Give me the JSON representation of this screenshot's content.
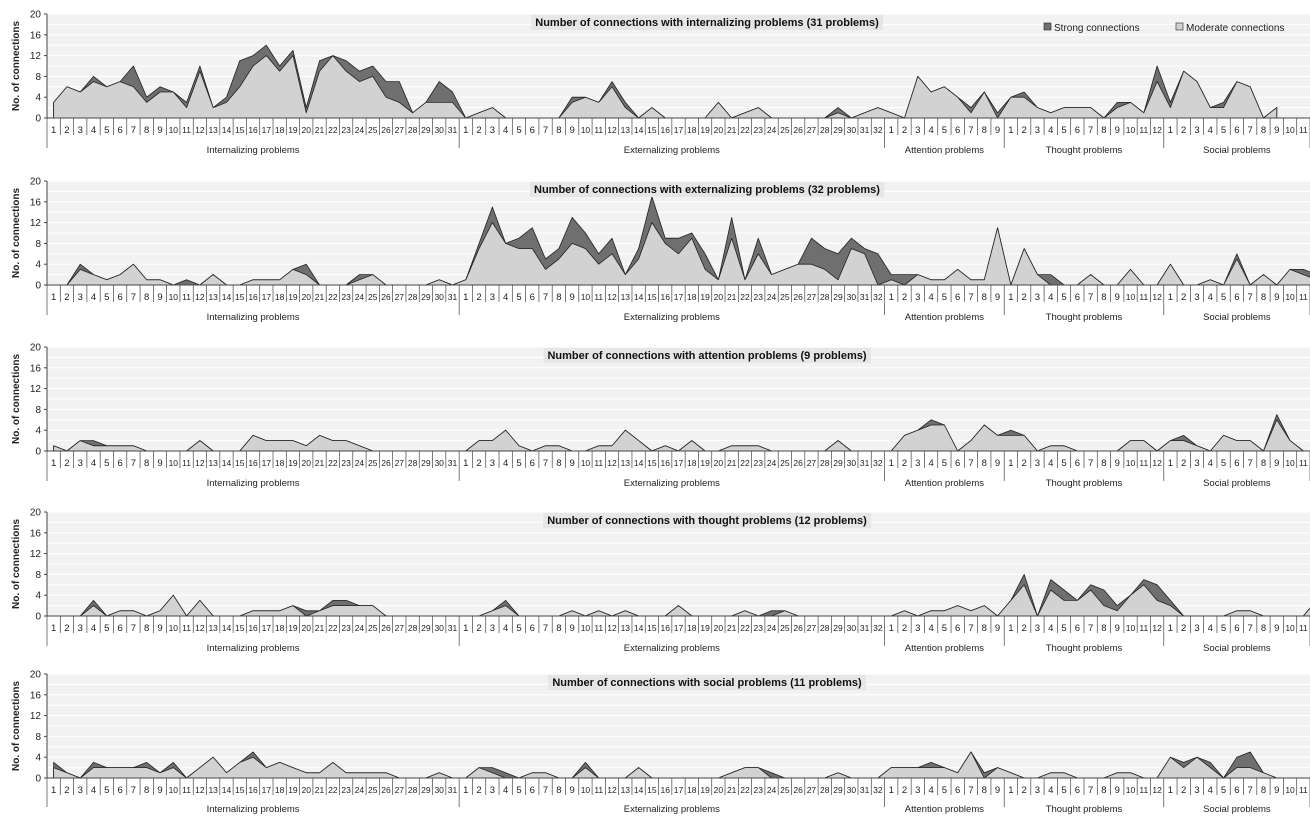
{
  "colors": {
    "strong": "#6f6f6f",
    "moderate": "#d2d2d2",
    "outline": "#222222",
    "band_light": "#f2f2f2",
    "title_bg": "#e6e6e6",
    "axis": "#444444"
  },
  "legend": {
    "strong_label": "Strong connections",
    "moderate_label": "Moderate connections"
  },
  "y_axis_label": "No. of connections",
  "groups": [
    {
      "name": "Internalizing problems",
      "count": 31
    },
    {
      "name": "Externalizing problems",
      "count": 32
    },
    {
      "name": "Attention problems",
      "count": 9
    },
    {
      "name": "Thought problems",
      "count": 12
    },
    {
      "name": "Social problems",
      "count": 11
    }
  ],
  "chart_data": [
    {
      "type": "area",
      "title": "Number of connections with internalizing problems (31 problems)",
      "ylabel": "No. of connections",
      "ylim": [
        0,
        20
      ],
      "yticks": [
        0,
        4,
        8,
        12,
        16,
        20
      ],
      "series": [
        {
          "name": "Strong connections",
          "values": [
            3,
            6,
            5,
            8,
            6,
            7,
            10,
            4,
            6,
            5,
            3,
            10,
            2,
            4,
            11,
            12,
            14,
            10,
            13,
            2,
            11,
            12,
            11,
            9,
            10,
            7,
            7,
            1,
            3,
            7,
            5,
            0,
            1,
            2,
            0,
            0,
            0,
            0,
            0,
            4,
            4,
            3,
            7,
            3,
            0,
            2,
            0,
            0,
            0,
            0,
            3,
            0,
            1,
            2,
            0,
            0,
            0,
            0,
            0,
            2,
            0,
            1,
            2,
            1,
            0,
            8,
            5,
            6,
            4,
            2,
            5,
            1,
            4,
            5,
            2,
            1,
            2,
            2,
            2,
            0,
            3,
            3,
            1,
            10,
            3,
            9,
            7,
            2,
            3,
            7,
            6,
            0,
            2
          ]
        },
        {
          "name": "Moderate connections",
          "values": [
            3,
            6,
            5,
            7,
            6,
            7,
            6,
            3,
            5,
            5,
            2,
            9,
            2,
            3,
            6,
            10,
            12,
            9,
            12,
            1,
            9,
            12,
            9,
            7,
            8,
            4,
            3,
            1,
            3,
            3,
            3,
            0,
            1,
            2,
            0,
            0,
            0,
            0,
            0,
            3,
            4,
            3,
            6,
            2,
            0,
            2,
            0,
            0,
            0,
            0,
            3,
            0,
            1,
            2,
            0,
            0,
            0,
            0,
            0,
            1,
            0,
            1,
            2,
            1,
            0,
            8,
            5,
            6,
            4,
            1,
            5,
            0,
            4,
            4,
            2,
            1,
            2,
            2,
            2,
            0,
            2,
            3,
            1,
            7,
            2,
            9,
            7,
            2,
            2,
            7,
            6,
            0,
            2
          ]
        }
      ]
    },
    {
      "type": "area",
      "title": "Number of connections with externalizing problems (32 problems)",
      "ylabel": "No. of connections",
      "ylim": [
        0,
        20
      ],
      "yticks": [
        0,
        4,
        8,
        12,
        16,
        20
      ],
      "series": [
        {
          "name": "Strong connections",
          "values": [
            0,
            0,
            4,
            2,
            1,
            2,
            4,
            1,
            1,
            0,
            1,
            0,
            2,
            0,
            0,
            1,
            1,
            1,
            3,
            4,
            0,
            0,
            0,
            2,
            2,
            0,
            0,
            0,
            0,
            1,
            0,
            1,
            8,
            15,
            8,
            9,
            11,
            5,
            7,
            13,
            10,
            6,
            9,
            2,
            7,
            17,
            9,
            9,
            10,
            6,
            1,
            13,
            1,
            9,
            2,
            3,
            4,
            9,
            7,
            6,
            9,
            7,
            6,
            2,
            2,
            2,
            1,
            1,
            3,
            1,
            1,
            11,
            0,
            7,
            2,
            2,
            0,
            0,
            2,
            0,
            0,
            3,
            0,
            0,
            4,
            0,
            0,
            1,
            0,
            6,
            0,
            2,
            0,
            3,
            3,
            2,
            1
          ]
        },
        {
          "name": "Moderate connections",
          "values": [
            0,
            0,
            3,
            2,
            1,
            2,
            4,
            1,
            1,
            0,
            0,
            0,
            2,
            0,
            0,
            1,
            1,
            1,
            3,
            2,
            0,
            0,
            0,
            1,
            2,
            0,
            0,
            0,
            0,
            1,
            0,
            1,
            7,
            12,
            8,
            7,
            7,
            3,
            5,
            8,
            7,
            4,
            6,
            2,
            5,
            12,
            8,
            6,
            9,
            3,
            1,
            9,
            1,
            6,
            2,
            3,
            4,
            4,
            3,
            1,
            7,
            6,
            0,
            1,
            0,
            2,
            1,
            1,
            3,
            1,
            1,
            11,
            0,
            7,
            2,
            0,
            0,
            0,
            2,
            0,
            0,
            3,
            0,
            0,
            4,
            0,
            0,
            1,
            0,
            5,
            0,
            2,
            0,
            3,
            2,
            1,
            1
          ]
        }
      ]
    },
    {
      "type": "area",
      "title": "Number of connections with attention problems (9 problems)",
      "ylabel": "No. of connections",
      "ylim": [
        0,
        20
      ],
      "yticks": [
        0,
        4,
        8,
        12,
        16,
        20
      ],
      "series": [
        {
          "name": "Strong connections",
          "values": [
            1,
            0,
            2,
            2,
            1,
            1,
            1,
            0,
            0,
            0,
            0,
            2,
            0,
            0,
            0,
            3,
            2,
            2,
            2,
            1,
            3,
            2,
            2,
            1,
            0,
            0,
            0,
            0,
            0,
            0,
            0,
            0,
            2,
            2,
            4,
            1,
            0,
            1,
            1,
            0,
            0,
            1,
            1,
            4,
            2,
            0,
            1,
            0,
            2,
            0,
            0,
            1,
            1,
            1,
            0,
            0,
            0,
            0,
            0,
            2,
            0,
            0,
            0,
            0,
            3,
            4,
            6,
            5,
            0,
            2,
            5,
            3,
            4,
            3,
            0,
            1,
            1,
            0,
            0,
            0,
            0,
            2,
            2,
            0,
            2,
            3,
            1,
            0,
            3,
            2,
            2,
            0,
            7,
            2,
            0
          ]
        },
        {
          "name": "Moderate connections",
          "values": [
            1,
            0,
            2,
            1,
            1,
            1,
            1,
            0,
            0,
            0,
            0,
            2,
            0,
            0,
            0,
            3,
            2,
            2,
            2,
            1,
            3,
            2,
            2,
            1,
            0,
            0,
            0,
            0,
            0,
            0,
            0,
            0,
            2,
            2,
            4,
            1,
            0,
            1,
            1,
            0,
            0,
            1,
            1,
            4,
            2,
            0,
            1,
            0,
            2,
            0,
            0,
            1,
            1,
            1,
            0,
            0,
            0,
            0,
            0,
            2,
            0,
            0,
            0,
            0,
            3,
            4,
            5,
            5,
            0,
            2,
            5,
            3,
            3,
            3,
            0,
            1,
            1,
            0,
            0,
            0,
            0,
            2,
            2,
            0,
            2,
            2,
            1,
            0,
            3,
            2,
            2,
            0,
            6,
            2,
            0
          ]
        }
      ]
    },
    {
      "type": "area",
      "title": "Number of connections with thought problems (12 problems)",
      "ylabel": "No. of connections",
      "ylim": [
        0,
        20
      ],
      "yticks": [
        0,
        4,
        8,
        12,
        16,
        20
      ],
      "series": [
        {
          "name": "Strong connections",
          "values": [
            0,
            0,
            0,
            3,
            0,
            1,
            1,
            0,
            1,
            4,
            0,
            3,
            0,
            0,
            0,
            1,
            1,
            1,
            2,
            1,
            1,
            3,
            3,
            2,
            2,
            0,
            0,
            0,
            0,
            0,
            0,
            0,
            0,
            1,
            3,
            0,
            0,
            0,
            0,
            1,
            0,
            1,
            0,
            1,
            0,
            0,
            0,
            2,
            0,
            0,
            0,
            0,
            1,
            0,
            1,
            1,
            0,
            0,
            0,
            0,
            0,
            0,
            0,
            0,
            1,
            0,
            1,
            1,
            2,
            1,
            2,
            0,
            3,
            8,
            0,
            7,
            5,
            3,
            6,
            5,
            2,
            4,
            7,
            6,
            3,
            0,
            0,
            0,
            0,
            1,
            1,
            0,
            0,
            0,
            0,
            3
          ]
        },
        {
          "name": "Moderate connections",
          "values": [
            0,
            0,
            0,
            2,
            0,
            1,
            1,
            0,
            1,
            4,
            0,
            3,
            0,
            0,
            0,
            1,
            1,
            1,
            2,
            0,
            1,
            2,
            2,
            2,
            2,
            0,
            0,
            0,
            0,
            0,
            0,
            0,
            0,
            1,
            2,
            0,
            0,
            0,
            0,
            1,
            0,
            1,
            0,
            1,
            0,
            0,
            0,
            2,
            0,
            0,
            0,
            0,
            1,
            0,
            0,
            1,
            0,
            0,
            0,
            0,
            0,
            0,
            0,
            0,
            1,
            0,
            1,
            1,
            2,
            1,
            2,
            0,
            3,
            6,
            0,
            5,
            3,
            3,
            5,
            2,
            1,
            4,
            6,
            3,
            2,
            0,
            0,
            0,
            0,
            1,
            1,
            0,
            0,
            0,
            0,
            3
          ]
        }
      ]
    },
    {
      "type": "area",
      "title": "Number of connections with social problems (11 problems)",
      "ylabel": "No. of connections",
      "ylim": [
        0,
        20
      ],
      "yticks": [
        0,
        4,
        8,
        12,
        16,
        20
      ],
      "series": [
        {
          "name": "Strong connections",
          "values": [
            3,
            1,
            0,
            3,
            2,
            2,
            2,
            3,
            1,
            3,
            0,
            2,
            4,
            1,
            3,
            5,
            2,
            3,
            2,
            1,
            1,
            3,
            1,
            1,
            1,
            1,
            0,
            0,
            0,
            1,
            0,
            0,
            2,
            2,
            1,
            0,
            1,
            1,
            0,
            0,
            3,
            0,
            0,
            0,
            2,
            0,
            0,
            0,
            0,
            0,
            0,
            1,
            2,
            2,
            1,
            0,
            0,
            0,
            0,
            1,
            0,
            0,
            0,
            2,
            2,
            2,
            3,
            2,
            1,
            5,
            1,
            2,
            1,
            0,
            0,
            1,
            1,
            0,
            0,
            0,
            1,
            1,
            0,
            0,
            4,
            3,
            4,
            3,
            0,
            4,
            5,
            1,
            0,
            0,
            0
          ]
        },
        {
          "name": "Moderate connections",
          "values": [
            2,
            1,
            0,
            2,
            2,
            2,
            2,
            2,
            1,
            2,
            0,
            2,
            4,
            1,
            3,
            4,
            2,
            3,
            2,
            1,
            1,
            3,
            1,
            1,
            1,
            1,
            0,
            0,
            0,
            1,
            0,
            0,
            2,
            1,
            0,
            0,
            1,
            1,
            0,
            0,
            2,
            0,
            0,
            0,
            2,
            0,
            0,
            0,
            0,
            0,
            0,
            1,
            2,
            2,
            0,
            0,
            0,
            0,
            0,
            1,
            0,
            0,
            0,
            2,
            2,
            2,
            2,
            2,
            1,
            5,
            0,
            2,
            1,
            0,
            0,
            1,
            1,
            0,
            0,
            0,
            1,
            1,
            0,
            0,
            4,
            2,
            4,
            2,
            0,
            2,
            2,
            1,
            0,
            0,
            0
          ]
        }
      ]
    }
  ]
}
